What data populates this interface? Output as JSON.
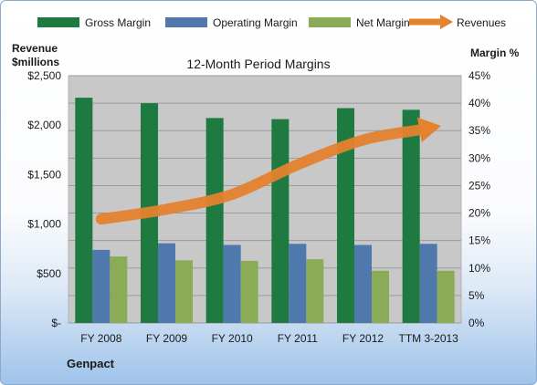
{
  "chart_data": {
    "type": "bar",
    "title": "12-Month Period Margins",
    "company": "Genpact",
    "left_axis_label": [
      "Revenue",
      "$millions"
    ],
    "right_axis_label": "Margin %",
    "categories": [
      "FY 2008",
      "FY 2009",
      "FY 2010",
      "FY 2011",
      "FY 2012",
      "TTM 3-2013"
    ],
    "left_ticks": [
      "$-",
      "$500",
      "$1,000",
      "$1,500",
      "$2,000",
      "$2,500"
    ],
    "right_ticks": [
      "0%",
      "5%",
      "10%",
      "15%",
      "20%",
      "25%",
      "30%",
      "35%",
      "40%",
      "45%"
    ],
    "y_left_range": [
      0,
      2500
    ],
    "y_right_range": [
      0,
      45
    ],
    "legend_position": "top",
    "series": [
      {
        "name": "Gross Margin",
        "axis": "right",
        "type": "bar",
        "color": "#1e7a40",
        "values": [
          41.0,
          40.0,
          37.3,
          37.1,
          39.1,
          38.8
        ]
      },
      {
        "name": "Operating Margin",
        "axis": "right",
        "type": "bar",
        "color": "#4f79ad",
        "values": [
          13.3,
          14.5,
          14.2,
          14.4,
          14.2,
          14.4
        ]
      },
      {
        "name": "Net Margin",
        "axis": "right",
        "type": "bar",
        "color": "#8aac56",
        "values": [
          12.1,
          11.4,
          11.3,
          11.6,
          9.5,
          9.5
        ]
      },
      {
        "name": "Revenues",
        "axis": "left",
        "type": "line",
        "color": "#e4822e",
        "values": [
          1050,
          1150,
          1300,
          1600,
          1850,
          1970
        ]
      }
    ]
  }
}
